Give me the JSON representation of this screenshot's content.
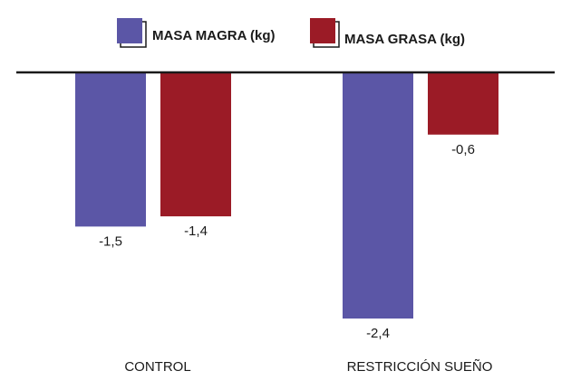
{
  "chart_data": {
    "type": "bar",
    "categories": [
      "CONTROL",
      "RESTRICCIÓN SUEÑO"
    ],
    "series": [
      {
        "name": "MASA MAGRA (kg)",
        "values": [
          -1.5,
          -2.4
        ],
        "labels": [
          "-1,5",
          "-2,4"
        ],
        "color": "#5b56a6"
      },
      {
        "name": "MASA GRASA (kg)",
        "values": [
          -1.4,
          -0.6
        ],
        "labels": [
          "-1,4",
          "-0,6"
        ],
        "color": "#9b1b26"
      }
    ],
    "ylim": [
      -2.4,
      0
    ],
    "legend_position": "top-center",
    "grid": false
  }
}
